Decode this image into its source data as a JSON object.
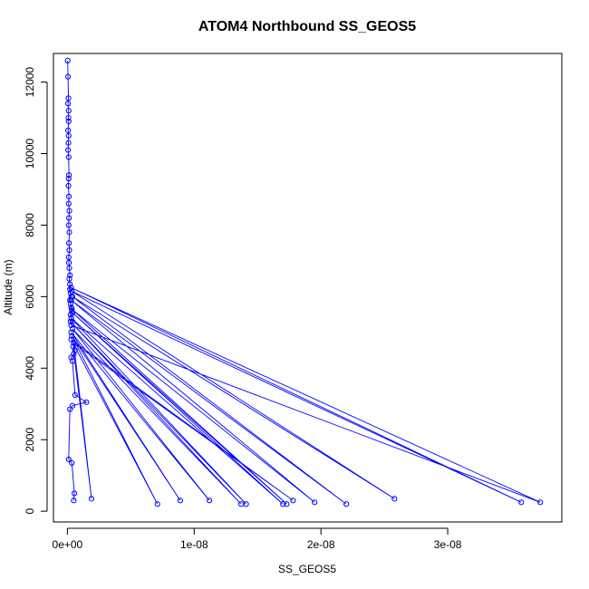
{
  "chart_data": {
    "type": "line",
    "title": "ATOM4 Northbound SS_GEOS5",
    "xlabel": "SS_GEOS5",
    "ylabel": "Altitude (m)",
    "xlim": [
      -1.1e-09,
      3.9e-08
    ],
    "ylim": [
      -300,
      12800
    ],
    "x_ticks": [
      0,
      1e-08,
      2e-08,
      3e-08
    ],
    "x_tick_labels": [
      "0e+00",
      "1e-08",
      "2e-08",
      "3e-08"
    ],
    "y_ticks": [
      0,
      2000,
      4000,
      6000,
      8000,
      10000,
      12000
    ],
    "y_tick_labels": [
      "0",
      "2000",
      "4000",
      "6000",
      "8000",
      "10000",
      "12000"
    ],
    "series_color": "#0000ff",
    "marker": "open-circle",
    "grid": false,
    "series": [
      {
        "x": [
          2e-11,
          5e-11,
          8e-11,
          5e-11,
          1e-10,
          8e-11,
          1e-10,
          5e-11,
          1e-10,
          8e-11,
          5e-11,
          1e-10,
          1.2e-10,
          1e-10,
          8e-11,
          1.2e-10,
          1e-10,
          1.5e-10,
          1.2e-10,
          1e-10,
          1.5e-10,
          1.2e-10,
          1.5e-10,
          1e-10,
          1.2e-10,
          1.5e-10,
          2e-10,
          1.5e-10,
          2e-10,
          2e-10,
          2.5e-10,
          3e-10,
          2e-10,
          2.5e-10,
          3e-10,
          3.5e-10,
          2.5e-10,
          3e-10,
          4e-10,
          3e-10,
          3.73e-08,
          3e-10,
          3.58e-08,
          3.5e-10,
          2.58e-08,
          4e-10,
          2.2e-08,
          3e-10,
          1.95e-08,
          3.5e-10,
          1.73e-08,
          4e-10,
          1.7e-08,
          3e-10,
          1.41e-08,
          2.5e-10,
          1.37e-08,
          4e-10,
          1.12e-08,
          3e-10,
          8.9e-09,
          3.5e-10,
          7.1e-09,
          3e-10,
          1.78e-08,
          5e-10,
          1.9e-09,
          4.5e-10,
          6e-10,
          5e-10,
          3e-10,
          4e-10,
          6e-10,
          1.5e-09,
          4e-10,
          2e-10,
          1e-10,
          3.5e-10,
          5.5e-10,
          5e-10
        ],
        "y": [
          12600,
          12150,
          11550,
          11400,
          11200,
          11000,
          10900,
          10650,
          10500,
          10300,
          10100,
          9900,
          9400,
          9300,
          9100,
          8800,
          8600,
          8400,
          8200,
          8000,
          7800,
          7500,
          7300,
          7100,
          6950,
          6800,
          6600,
          6500,
          6350,
          6200,
          6100,
          6000,
          5900,
          5800,
          5700,
          5600,
          5500,
          5400,
          5300,
          5200,
          250,
          6250,
          250,
          6150,
          350,
          6000,
          200,
          5900,
          250,
          5650,
          200,
          5550,
          200,
          5400,
          200,
          5300,
          200,
          5100,
          300,
          5000,
          300,
          4900,
          200,
          4800,
          300,
          4700,
          350,
          4600,
          4500,
          4400,
          4300,
          4200,
          3250,
          3050,
          2950,
          2850,
          1450,
          1350,
          500,
          300
        ]
      }
    ]
  }
}
